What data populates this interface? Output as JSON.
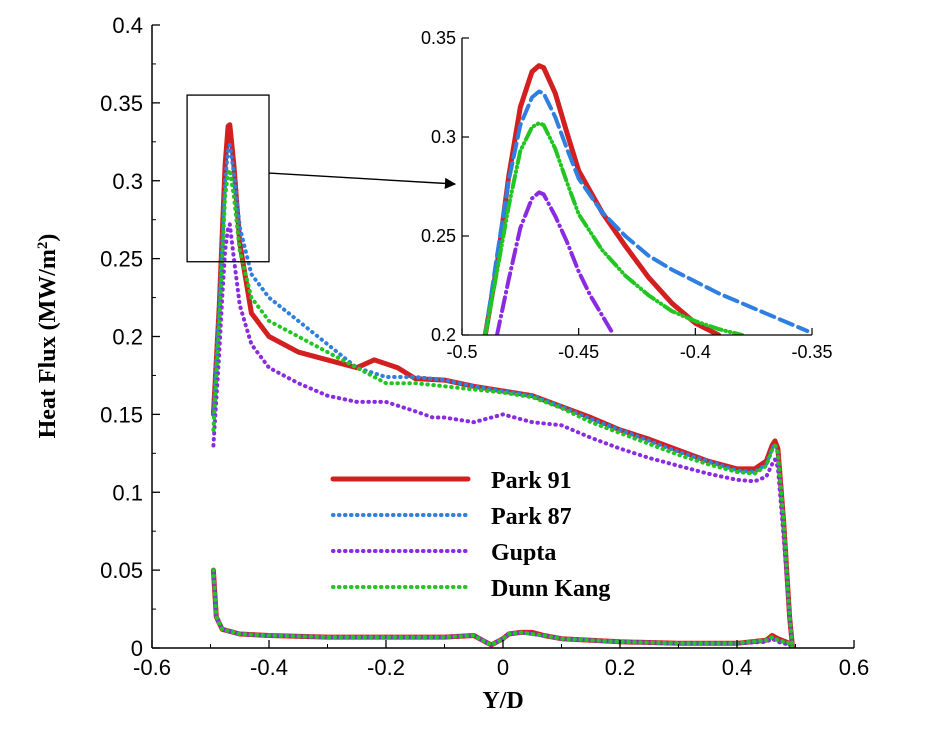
{
  "chart_data": [
    {
      "type": "line",
      "xlabel": "Y/D",
      "ylabel": "Heat Flux (MW/m",
      "ylabel_sup": "2",
      "ylabel_close": ")",
      "xlim": [
        -0.6,
        0.6
      ],
      "ylim": [
        0,
        0.4
      ],
      "xticks": [
        "-0.6",
        "-0.4",
        "-0.2",
        "0",
        "0.2",
        "0.4",
        "0.6"
      ],
      "yticks": [
        "0",
        "0.05",
        "0.1",
        "0.15",
        "0.2",
        "0.25",
        "0.3",
        "0.35",
        "0.4"
      ],
      "legend_position": "center",
      "series": [
        {
          "name": "Park 91",
          "color": "#d21f1f",
          "style": "solid",
          "x": [
            -0.495,
            -0.485,
            -0.48,
            -0.475,
            -0.47,
            -0.467,
            -0.46,
            -0.45,
            -0.43,
            -0.4,
            -0.35,
            -0.3,
            -0.25,
            -0.22,
            -0.18,
            -0.15,
            -0.1,
            -0.05,
            0,
            0.05,
            0.1,
            0.15,
            0.2,
            0.25,
            0.3,
            0.35,
            0.4,
            0.43,
            0.45,
            0.46,
            0.465,
            0.47,
            0.48,
            0.49,
            0.495,
            0.49,
            0.47,
            0.46,
            0.45,
            0.4,
            0.3,
            0.2,
            0.1,
            0.07,
            0.05,
            0.03,
            0.01,
            0,
            -0.01,
            -0.02,
            -0.03,
            -0.05,
            -0.1,
            -0.2,
            -0.3,
            -0.4,
            -0.45,
            -0.48,
            -0.49,
            -0.495
          ],
          "y": [
            0.15,
            0.22,
            0.265,
            0.31,
            0.335,
            0.336,
            0.31,
            0.26,
            0.215,
            0.2,
            0.19,
            0.185,
            0.18,
            0.185,
            0.18,
            0.173,
            0.172,
            0.168,
            0.165,
            0.162,
            0.155,
            0.148,
            0.14,
            0.134,
            0.127,
            0.12,
            0.115,
            0.115,
            0.12,
            0.13,
            0.133,
            0.128,
            0.08,
            0.02,
            0,
            0.003,
            0.006,
            0.008,
            0.005,
            0.003,
            0.003,
            0.004,
            0.006,
            0.008,
            0.01,
            0.01,
            0.009,
            0.006,
            0.004,
            0.002,
            0.004,
            0.008,
            0.007,
            0.007,
            0.007,
            0.008,
            0.009,
            0.012,
            0.02,
            0.05
          ]
        },
        {
          "name": "Park 87",
          "color": "#2f7fe0",
          "style": "dotted",
          "x": [
            -0.495,
            -0.485,
            -0.48,
            -0.475,
            -0.47,
            -0.467,
            -0.46,
            -0.45,
            -0.43,
            -0.4,
            -0.35,
            -0.3,
            -0.25,
            -0.2,
            -0.15,
            -0.1,
            -0.05,
            0,
            0.05,
            0.1,
            0.15,
            0.2,
            0.25,
            0.3,
            0.35,
            0.4,
            0.43,
            0.45,
            0.46,
            0.465,
            0.47,
            0.48,
            0.49,
            0.495,
            0.49,
            0.47,
            0.46,
            0.45,
            0.4,
            0.3,
            0.2,
            0.1,
            0.07,
            0.05,
            0.03,
            0.01,
            0,
            -0.01,
            -0.02,
            -0.03,
            -0.05,
            -0.1,
            -0.2,
            -0.3,
            -0.4,
            -0.45,
            -0.48,
            -0.49,
            -0.495
          ],
          "y": [
            0.15,
            0.22,
            0.26,
            0.3,
            0.32,
            0.323,
            0.305,
            0.27,
            0.24,
            0.225,
            0.21,
            0.195,
            0.18,
            0.174,
            0.174,
            0.172,
            0.168,
            0.165,
            0.162,
            0.155,
            0.147,
            0.14,
            0.133,
            0.126,
            0.12,
            0.114,
            0.113,
            0.118,
            0.128,
            0.131,
            0.126,
            0.08,
            0.02,
            0,
            0.003,
            0.005,
            0.007,
            0.005,
            0.003,
            0.003,
            0.004,
            0.006,
            0.008,
            0.009,
            0.01,
            0.009,
            0.006,
            0.004,
            0.002,
            0.004,
            0.008,
            0.007,
            0.007,
            0.007,
            0.008,
            0.009,
            0.012,
            0.02,
            0.05
          ]
        },
        {
          "name": "Gupta",
          "color": "#8a2be2",
          "style": "dotted",
          "x": [
            -0.495,
            -0.485,
            -0.48,
            -0.475,
            -0.47,
            -0.467,
            -0.46,
            -0.45,
            -0.43,
            -0.4,
            -0.35,
            -0.3,
            -0.25,
            -0.2,
            -0.15,
            -0.12,
            -0.1,
            -0.05,
            0,
            0.05,
            0.1,
            0.15,
            0.2,
            0.25,
            0.3,
            0.35,
            0.4,
            0.43,
            0.45,
            0.46,
            0.465,
            0.47,
            0.48,
            0.49,
            0.495,
            0.49,
            0.47,
            0.46,
            0.45,
            0.4,
            0.3,
            0.2,
            0.1,
            0.07,
            0.05,
            0.03,
            0.01,
            0,
            -0.01,
            -0.02,
            -0.03,
            -0.05,
            -0.1,
            -0.2,
            -0.3,
            -0.4,
            -0.45,
            -0.48,
            -0.49,
            -0.495
          ],
          "y": [
            0.13,
            0.19,
            0.225,
            0.255,
            0.27,
            0.272,
            0.25,
            0.22,
            0.195,
            0.18,
            0.17,
            0.162,
            0.158,
            0.158,
            0.152,
            0.148,
            0.148,
            0.145,
            0.15,
            0.145,
            0.143,
            0.135,
            0.128,
            0.122,
            0.117,
            0.112,
            0.108,
            0.107,
            0.11,
            0.118,
            0.121,
            0.116,
            0.07,
            0.02,
            0,
            0.002,
            0.004,
            0.006,
            0.004,
            0.003,
            0.003,
            0.004,
            0.006,
            0.008,
            0.009,
            0.01,
            0.009,
            0.006,
            0.004,
            0.002,
            0.004,
            0.008,
            0.007,
            0.007,
            0.007,
            0.008,
            0.009,
            0.012,
            0.02,
            0.05
          ]
        },
        {
          "name": "Dunn Kang",
          "color": "#22c522",
          "style": "dashdot",
          "x": [
            -0.495,
            -0.485,
            -0.48,
            -0.475,
            -0.47,
            -0.467,
            -0.46,
            -0.45,
            -0.43,
            -0.4,
            -0.35,
            -0.3,
            -0.25,
            -0.2,
            -0.15,
            -0.1,
            -0.05,
            0,
            0.05,
            0.1,
            0.15,
            0.2,
            0.25,
            0.3,
            0.35,
            0.4,
            0.43,
            0.45,
            0.46,
            0.465,
            0.47,
            0.48,
            0.49,
            0.495,
            0.49,
            0.47,
            0.46,
            0.45,
            0.4,
            0.3,
            0.2,
            0.1,
            0.07,
            0.05,
            0.03,
            0.01,
            0,
            -0.01,
            -0.02,
            -0.03,
            -0.05,
            -0.1,
            -0.2,
            -0.3,
            -0.4,
            -0.45,
            -0.48,
            -0.49,
            -0.495
          ],
          "y": [
            0.14,
            0.21,
            0.25,
            0.29,
            0.305,
            0.307,
            0.29,
            0.255,
            0.225,
            0.21,
            0.2,
            0.19,
            0.18,
            0.17,
            0.17,
            0.168,
            0.166,
            0.164,
            0.161,
            0.154,
            0.145,
            0.138,
            0.131,
            0.124,
            0.118,
            0.113,
            0.112,
            0.117,
            0.127,
            0.13,
            0.125,
            0.08,
            0.02,
            0,
            0.003,
            0.005,
            0.007,
            0.005,
            0.003,
            0.003,
            0.004,
            0.006,
            0.008,
            0.009,
            0.01,
            0.009,
            0.006,
            0.004,
            0.002,
            0.004,
            0.008,
            0.007,
            0.007,
            0.007,
            0.008,
            0.009,
            0.012,
            0.02,
            0.05
          ]
        }
      ]
    },
    {
      "type": "line",
      "xlim": [
        -0.5,
        -0.35
      ],
      "ylim": [
        0.2,
        0.35
      ],
      "xticks": [
        "-0.5",
        "-0.45",
        "-0.4",
        "-0.35"
      ],
      "yticks": [
        "0.2",
        "0.25",
        "0.3",
        "0.35"
      ],
      "zoom_box": {
        "x": [
          -0.54,
          -0.4
        ],
        "y": [
          0.248,
          0.355
        ]
      },
      "series": [
        {
          "name": "Park 91",
          "color": "#d21f1f",
          "style": "solid",
          "x": [
            -0.49,
            -0.485,
            -0.48,
            -0.475,
            -0.47,
            -0.467,
            -0.465,
            -0.46,
            -0.455,
            -0.45,
            -0.44,
            -0.43,
            -0.42,
            -0.41,
            -0.4,
            -0.39
          ],
          "y": [
            0.2,
            0.235,
            0.28,
            0.315,
            0.333,
            0.336,
            0.335,
            0.322,
            0.302,
            0.283,
            0.262,
            0.245,
            0.229,
            0.216,
            0.206,
            0.2
          ]
        },
        {
          "name": "Park 87",
          "color": "#2f7fe0",
          "style": "dashed",
          "x": [
            -0.49,
            -0.485,
            -0.48,
            -0.475,
            -0.47,
            -0.467,
            -0.465,
            -0.46,
            -0.455,
            -0.45,
            -0.44,
            -0.43,
            -0.42,
            -0.41,
            -0.4,
            -0.39,
            -0.38,
            -0.37,
            -0.36,
            -0.352
          ],
          "y": [
            0.2,
            0.24,
            0.278,
            0.306,
            0.32,
            0.323,
            0.322,
            0.31,
            0.294,
            0.279,
            0.262,
            0.25,
            0.24,
            0.233,
            0.227,
            0.221,
            0.216,
            0.211,
            0.206,
            0.202
          ]
        },
        {
          "name": "Gupta",
          "color": "#8a2be2",
          "style": "dashdot",
          "x": [
            -0.485,
            -0.48,
            -0.475,
            -0.47,
            -0.467,
            -0.465,
            -0.46,
            -0.455,
            -0.45,
            -0.445,
            -0.44,
            -0.435
          ],
          "y": [
            0.2,
            0.228,
            0.254,
            0.269,
            0.272,
            0.271,
            0.26,
            0.247,
            0.232,
            0.22,
            0.21,
            0.2
          ]
        },
        {
          "name": "Dunn Kang",
          "color": "#22c522",
          "style": "dashdotdot",
          "x": [
            -0.49,
            -0.485,
            -0.48,
            -0.475,
            -0.47,
            -0.467,
            -0.465,
            -0.46,
            -0.455,
            -0.45,
            -0.44,
            -0.43,
            -0.42,
            -0.41,
            -0.4,
            -0.39,
            -0.38
          ],
          "y": [
            0.2,
            0.232,
            0.265,
            0.293,
            0.305,
            0.307,
            0.306,
            0.294,
            0.277,
            0.261,
            0.243,
            0.23,
            0.22,
            0.212,
            0.207,
            0.203,
            0.2
          ]
        }
      ]
    }
  ]
}
